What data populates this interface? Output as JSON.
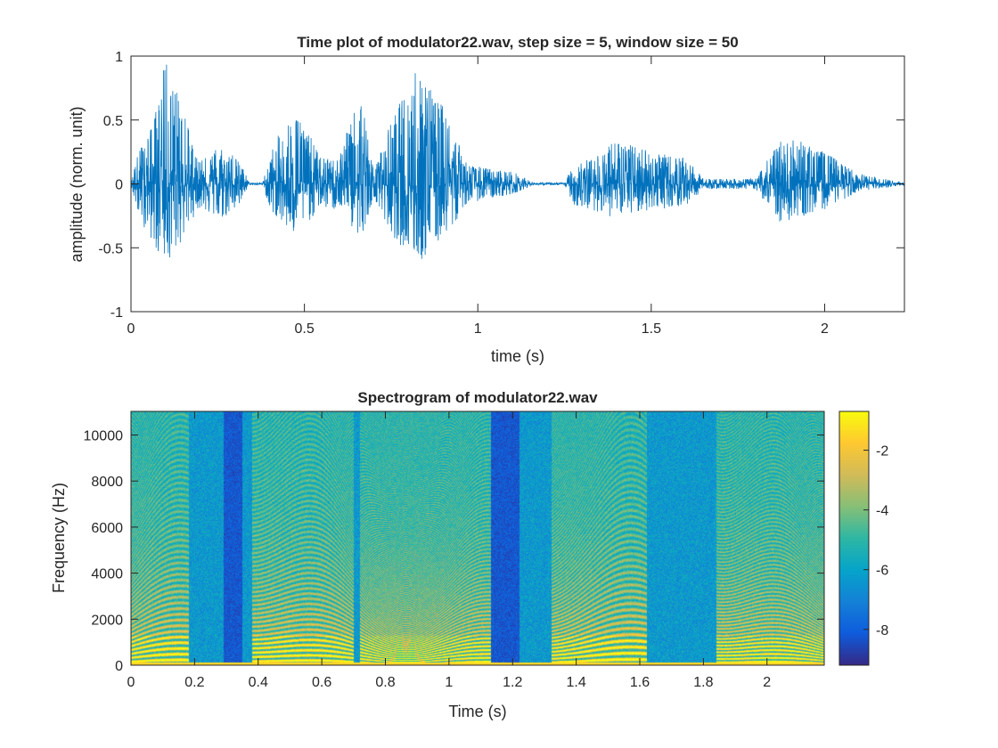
{
  "chart_data": [
    {
      "type": "line",
      "title": "Time plot of modulator22.wav, step size = 5, window size = 50",
      "xlabel": "time (s)",
      "ylabel": "amplitude (norm. unit)",
      "xlim": [
        0,
        2.23
      ],
      "ylim": [
        -1,
        1
      ],
      "xticks": [
        "0",
        "0.5",
        "1",
        "1.5",
        "2"
      ],
      "yticks": [
        "-1",
        "-0.5",
        "0",
        "0.5",
        "1"
      ],
      "series_color": "#0072bd",
      "envelope": {
        "t": [
          0,
          0.02,
          0.06,
          0.1,
          0.14,
          0.19,
          0.21,
          0.26,
          0.32,
          0.34,
          0.38,
          0.4,
          0.47,
          0.55,
          0.6,
          0.66,
          0.7,
          0.75,
          0.83,
          0.9,
          0.97,
          1.1,
          1.16,
          1.25,
          1.28,
          1.33,
          1.4,
          1.5,
          1.6,
          1.65,
          1.8,
          1.87,
          1.92,
          2.0,
          2.1,
          2.23
        ],
        "pos": [
          0.02,
          0.25,
          0.45,
          0.98,
          0.7,
          0.2,
          0.2,
          0.32,
          0.15,
          0.01,
          0.01,
          0.25,
          0.62,
          0.2,
          0.2,
          0.76,
          0.1,
          0.5,
          0.96,
          0.6,
          0.15,
          0.1,
          0.01,
          0.01,
          0.18,
          0.2,
          0.35,
          0.25,
          0.2,
          0.04,
          0.04,
          0.33,
          0.35,
          0.25,
          0.08,
          0.01
        ],
        "neg": [
          -0.02,
          -0.25,
          -0.45,
          -0.63,
          -0.5,
          -0.2,
          -0.2,
          -0.3,
          -0.15,
          -0.01,
          -0.01,
          -0.2,
          -0.4,
          -0.2,
          -0.2,
          -0.45,
          -0.1,
          -0.4,
          -0.64,
          -0.45,
          -0.15,
          -0.08,
          -0.01,
          -0.01,
          -0.18,
          -0.2,
          -0.28,
          -0.2,
          -0.18,
          -0.04,
          -0.04,
          -0.3,
          -0.28,
          -0.2,
          -0.06,
          -0.01
        ]
      }
    },
    {
      "type": "heatmap",
      "title": "Spectrogram of modulator22.wav",
      "xlabel": "Time (s)",
      "ylabel": "Frequency (Hz)",
      "xlim": [
        0,
        2.18
      ],
      "ylim": [
        0,
        11025
      ],
      "xticks": [
        "0",
        "0.2",
        "0.4",
        "0.6",
        "0.8",
        "1",
        "1.2",
        "1.4",
        "1.6",
        "1.8",
        "2"
      ],
      "yticks": [
        "0",
        "2000",
        "4000",
        "6000",
        "8000",
        "10000"
      ],
      "colormap": "parula",
      "colorbar": {
        "range": [
          -9.2,
          -0.7
        ],
        "ticks": [
          "-8",
          "-6",
          "-4",
          "-2"
        ]
      },
      "segments": [
        {
          "start": 0.0,
          "end": 0.18,
          "kind": "voiced"
        },
        {
          "start": 0.29,
          "end": 0.35,
          "kind": "silence"
        },
        {
          "start": 0.38,
          "end": 0.7,
          "kind": "voiced"
        },
        {
          "start": 0.72,
          "end": 0.95,
          "kind": "voiced"
        },
        {
          "start": 0.95,
          "end": 1.13,
          "kind": "voiced"
        },
        {
          "start": 1.13,
          "end": 1.22,
          "kind": "silence"
        },
        {
          "start": 1.32,
          "end": 1.62,
          "kind": "voiced"
        },
        {
          "start": 1.84,
          "end": 2.18,
          "kind": "voiced"
        }
      ]
    }
  ]
}
